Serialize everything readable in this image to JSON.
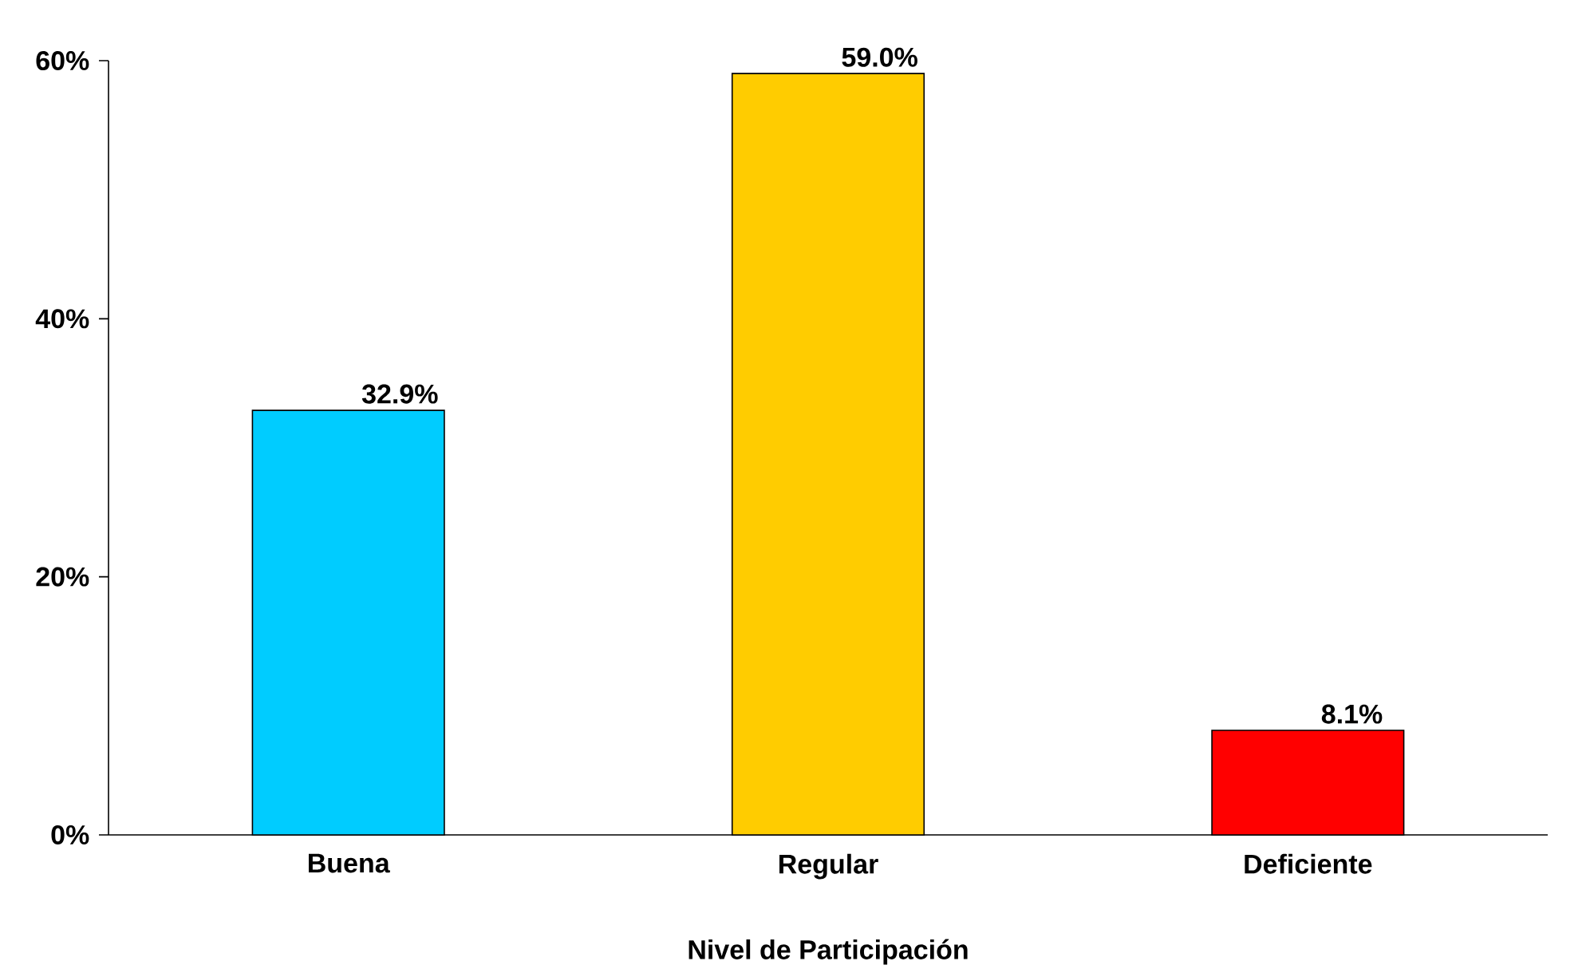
{
  "chart_data": {
    "type": "bar",
    "xlabel": "Nivel de Participación",
    "categories": [
      "Buena",
      "Regular",
      "Deficiente"
    ],
    "values": [
      32.9,
      59.0,
      8.1
    ],
    "value_labels": [
      "32.9%",
      "59.0%",
      "8.1%"
    ],
    "colors": [
      "#00ccff",
      "#ffcc00",
      "#ff0000"
    ],
    "ylim": [
      0,
      60
    ],
    "yticks": [
      {
        "value": 0,
        "label": "0%"
      },
      {
        "value": 20,
        "label": "20%"
      },
      {
        "value": 40,
        "label": "40%"
      },
      {
        "value": 60,
        "label": "60%"
      }
    ]
  }
}
